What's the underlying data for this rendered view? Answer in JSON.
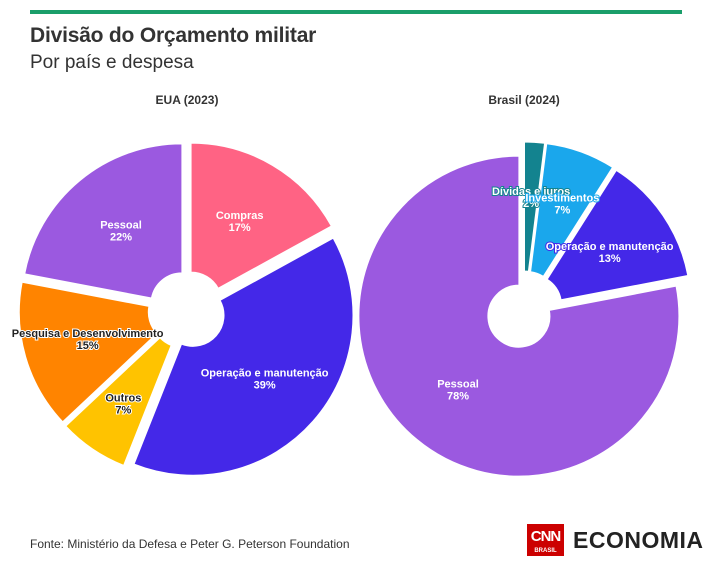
{
  "header": {
    "title": "Divisão do Orçamento militar",
    "subtitle": "Por país e despesa"
  },
  "footer": {
    "source": "Fonte: Ministério da Defesa e Peter G. Peterson Foundation",
    "logo_cnn": "CNN",
    "logo_cnn_sub": "BRASIL",
    "logo_economia": "ECONOMIA"
  },
  "chart_data": [
    {
      "type": "pie",
      "title": "EUA (2023)",
      "donut": true,
      "slices": [
        {
          "label": "Compras",
          "value": 17,
          "display": "17%",
          "color": "#ff6384",
          "text_color": "#ffffff"
        },
        {
          "label": "Operação e manutenção",
          "value": 39,
          "display": "39%",
          "color": "#4428e8",
          "text_color": "#ffffff"
        },
        {
          "label": "Outros",
          "value": 7,
          "display": "7%",
          "color": "#ffc300",
          "text_color": "#222222"
        },
        {
          "label": "Pesquisa e Desenvolvimento",
          "value": 15,
          "display": "15%",
          "color": "#ff8400",
          "text_color": "#222222"
        },
        {
          "label": "Pessoal",
          "value": 22,
          "display": "22%",
          "color": "#9b59e0",
          "text_color": "#ffffff"
        }
      ]
    },
    {
      "type": "pie",
      "title": "Brasil (2024)",
      "donut": true,
      "slices": [
        {
          "label": "Dívidas e juros",
          "value": 2,
          "display": "2%",
          "color": "#13838f",
          "text_color": "#ffffff"
        },
        {
          "label": "Investimentos",
          "value": 7,
          "display": "7%",
          "color": "#1aa7ec",
          "text_color": "#ffffff"
        },
        {
          "label": "Operação e manutenção",
          "value": 13,
          "display": "13%",
          "color": "#4428e8",
          "text_color": "#ffffff"
        },
        {
          "label": "Pessoal",
          "value": 78,
          "display": "78%",
          "color": "#9b59e0",
          "text_color": "#ffffff"
        }
      ]
    }
  ]
}
